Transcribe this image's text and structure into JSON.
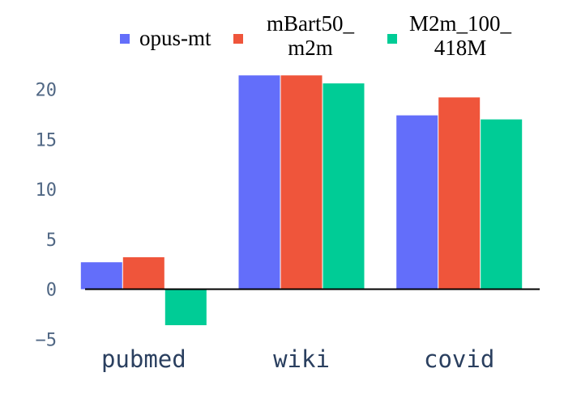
{
  "chart_data": {
    "type": "bar",
    "title": "",
    "xlabel": "",
    "ylabel": "",
    "categories": [
      "pubmed",
      "wiki",
      "covid"
    ],
    "series": [
      {
        "name": "opus-mt",
        "name_lines": [
          "opus-mt"
        ],
        "color": "#636efa",
        "values": [
          2.7,
          21.4,
          17.4
        ]
      },
      {
        "name": "mBart50_ m2m",
        "name_lines": [
          "mBart50_",
          "m2m"
        ],
        "color": "#ef553b",
        "values": [
          3.2,
          21.4,
          19.2
        ]
      },
      {
        "name": "M2m_100_ 418M",
        "name_lines": [
          "M2m_100_",
          "418M"
        ],
        "color": "#00cc96",
        "values": [
          -3.6,
          20.6,
          17.0
        ]
      }
    ],
    "yticks": [
      -5,
      0,
      5,
      10,
      15,
      20
    ],
    "ylim": [
      -5.6,
      23
    ],
    "grid": false,
    "legend_position": "top"
  }
}
